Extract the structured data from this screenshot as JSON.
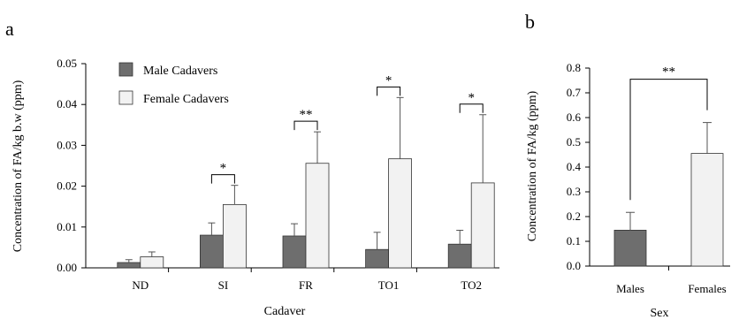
{
  "chart_data": [
    {
      "type": "bar",
      "panel_label": "a",
      "title": "",
      "xlabel": "Cadaver",
      "ylabel": "Concentration of FA/kg b.w (ppm)",
      "ylim": [
        0,
        0.05
      ],
      "yticks": [
        "0.00",
        "0.01",
        "0.02",
        "0.03",
        "0.04",
        "0.05"
      ],
      "categories": [
        "ND",
        "SI",
        "FR",
        "TO1",
        "TO2"
      ],
      "series": [
        {
          "name": "Male Cadavers",
          "color": "#6e6e6e",
          "values": [
            0.0013,
            0.008,
            0.0078,
            0.0045,
            0.0058
          ],
          "errors": [
            0.0007,
            0.003,
            0.003,
            0.0042,
            0.0034
          ]
        },
        {
          "name": "Female Cadavers",
          "color": "#f2f2f2",
          "values": [
            0.0027,
            0.0155,
            0.0256,
            0.0267,
            0.0208
          ],
          "errors": [
            0.0012,
            0.0047,
            0.0077,
            0.015,
            0.0167
          ]
        }
      ],
      "significance": [
        "",
        "*",
        "**",
        "*",
        "*"
      ],
      "legend_position": "top-left",
      "grid": false
    },
    {
      "type": "bar",
      "panel_label": "b",
      "title": "",
      "xlabel": "Sex",
      "ylabel": "Concentration of FA/kg (ppm)",
      "ylim": [
        0,
        0.8
      ],
      "yticks": [
        "0.0",
        "0.1",
        "0.2",
        "0.3",
        "0.4",
        "0.5",
        "0.6",
        "0.7",
        "0.8"
      ],
      "categories": [
        "Males",
        "Females"
      ],
      "values": [
        0.145,
        0.455
      ],
      "errors": [
        0.072,
        0.125
      ],
      "colors": [
        "#6e6e6e",
        "#f2f2f2"
      ],
      "significance": "**",
      "grid": false
    }
  ]
}
